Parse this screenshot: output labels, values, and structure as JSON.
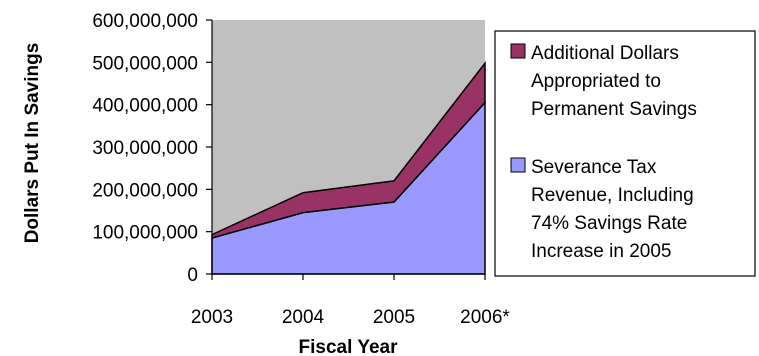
{
  "chart_data": {
    "type": "area",
    "stacked": true,
    "categories": [
      "2003",
      "2004",
      "2005",
      "2006*"
    ],
    "series": [
      {
        "name": "Severance Tax Revenue, Including 74% Savings Rate Increase in 2005",
        "legend_lines": [
          "Severance Tax",
          "Revenue, Including",
          "74% Savings Rate",
          "Increase in 2005"
        ],
        "values": [
          85000000,
          145000000,
          170000000,
          405000000
        ],
        "color": "#9999ff"
      },
      {
        "name": "Additional Dollars Appropriated to Permanent Savings",
        "legend_lines": [
          "Additional Dollars",
          "Appropriated to",
          "Permanent Savings"
        ],
        "values": [
          8000000,
          47000000,
          50000000,
          93000000
        ],
        "color": "#993366"
      }
    ],
    "xlabel": "Fiscal Year",
    "ylabel": "Dollars Put In Savings",
    "ylim": [
      0,
      600000000
    ],
    "yticks": [
      0,
      100000000,
      200000000,
      300000000,
      400000000,
      500000000,
      600000000
    ],
    "ytick_labels": [
      "0",
      "100,000,000",
      "200,000,000",
      "300,000,000",
      "400,000,000",
      "500,000,000",
      "600,000,000"
    ],
    "plot_background": "#c0c0c0",
    "legend_position": "right",
    "grid": false
  }
}
